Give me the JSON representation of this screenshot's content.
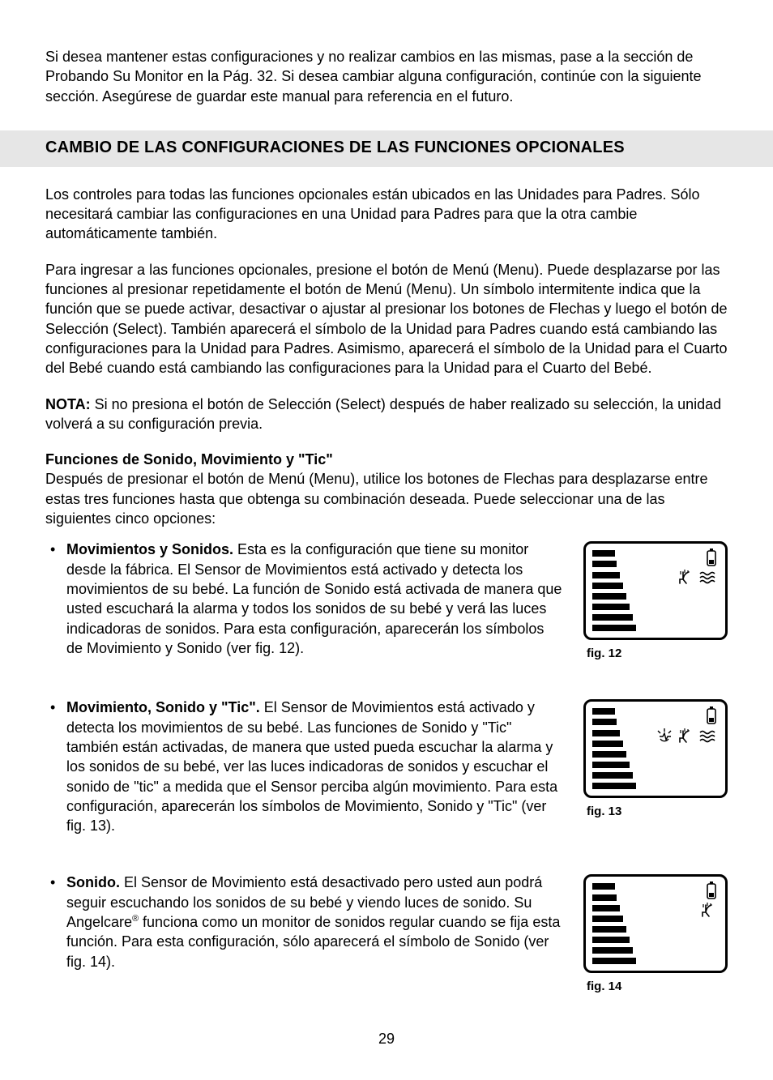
{
  "intro": "Si desea mantener estas configuraciones y no realizar cambios en las mismas, pase a la sección de Probando Su Monitor en la Pág. 32. Si desea cambiar alguna configuración, continúe con la siguiente sección. Asegúrese de guardar este manual para referencia en el futuro.",
  "section_title": "CAMBIO DE LAS CONFIGURACIONES DE LAS FUNCIONES OPCIONALES",
  "para1": "Los controles para todas las funciones opcionales están ubicados en las Unidades para Padres. Sólo necesitará cambiar las configuraciones en una Unidad para Padres para que la otra cambie automáticamente también.",
  "para2": "Para ingresar a las funciones opcionales, presione el botón de Menú (Menu). Puede desplazarse por las funciones al presionar repetidamente el botón de Menú (Menu). Un símbolo intermitente indica que la función que se puede activar, desactivar o ajustar al presionar los botones de Flechas y luego el botón de Selección (Select). También aparecerá el símbolo de la Unidad para Padres cuando está cambiando las configuraciones para la Unidad para Padres. Asimismo, aparecerá el símbolo de la Unidad para el Cuarto del Bebé cuando está cambiando las configuraciones para la Unidad para el Cuarto del Bebé.",
  "nota_label": "NOTA:",
  "nota_text": " Si no presiona el botón de Selección (Select) después de haber realizado su selección, la unidad volverá a su configuración previa.",
  "sub_heading": "Funciones de Sonido, Movimiento y \"Tic\"",
  "sub_para": "Después de presionar el botón de Menú (Menu), utilice los botones de Flechas para desplazarse entre estas tres funciones hasta que obtenga su combinación deseada. Puede seleccionar una de las siguientes cinco opciones:",
  "options": [
    {
      "title": "Movimientos y Sonidos.",
      "text": " Esta es la configuración que tiene su monitor desde la fábrica. El Sensor de Movimientos está activado y detecta los movimientos de su bebé. La función de Sonido está activada de manera que usted escuchará la alarma y todos los sonidos de su bebé y verá las luces indicadoras de sonidos. Para esta configuración, aparecerán los símbolos de Movimiento y Sonido (ver fig. 12).",
      "fig_caption": "fig. 12",
      "icons": [
        "sound",
        "motion"
      ],
      "registered": false
    },
    {
      "title": "Movimiento, Sonido y \"Tic\".",
      "text": " El Sensor de Movimientos está activado y detecta los movimientos de su bebé. Las funciones de Sonido y \"Tic\" también están activadas, de manera que usted pueda escuchar la alarma y los sonidos de su bebé, ver las luces indicadoras de sonidos y escuchar el sonido de \"tic\" a medida que el Sensor perciba algún movimiento. Para esta configuración, aparecerán los símbolos de Movimiento, Sonido y \"Tic\" (ver fig. 13).",
      "fig_caption": "fig. 13",
      "icons": [
        "tic",
        "sound",
        "motion"
      ],
      "registered": false
    },
    {
      "title": "Sonido.",
      "text_pre": " El Sensor de Movimiento está desactivado pero usted aun podrá seguir escuchando los sonidos de su bebé y viendo luces de sonido. Su Angelcare",
      "text_post": " funciona como un monitor de sonidos regular cuando se fija esta función. Para esta configuración, sólo aparecerá el símbolo de Sonido (ver fig. 14).",
      "fig_caption": "fig. 14",
      "icons": [
        "sound"
      ],
      "registered": true
    }
  ],
  "sound_bar_widths": [
    28,
    30,
    34,
    38,
    42,
    46,
    50,
    54
  ],
  "page_number": "29",
  "colors": {
    "header_bg": "#e6e6e6",
    "text": "#000000",
    "bg": "#ffffff"
  }
}
